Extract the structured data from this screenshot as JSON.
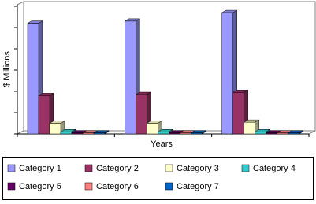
{
  "chart_data": {
    "type": "bar3d",
    "y_label": "$ Millions",
    "x_label": "Years",
    "categories": [
      null,
      null,
      null
    ],
    "ylim": [
      0,
      6
    ],
    "yticks": [
      0,
      1,
      2,
      3,
      4,
      5,
      6
    ],
    "legend": "bottom",
    "series": [
      {
        "name": "Category 1",
        "color": "#9999ff",
        "values": [
          5.2,
          5.3,
          5.7
        ]
      },
      {
        "name": "Category 2",
        "color": "#993366",
        "values": [
          1.8,
          1.85,
          1.95
        ]
      },
      {
        "name": "Category 3",
        "color": "#ffffcc",
        "values": [
          0.5,
          0.5,
          0.55
        ]
      },
      {
        "name": "Category 4",
        "color": "#33cccc",
        "values": [
          0.1,
          0.1,
          0.1
        ]
      },
      {
        "name": "Category 5",
        "color": "#660066",
        "values": [
          0.05,
          0.05,
          0.05
        ]
      },
      {
        "name": "Category 6",
        "color": "#ff8080",
        "values": [
          0.05,
          0.05,
          0.05
        ]
      },
      {
        "name": "Category 7",
        "color": "#0066cc",
        "values": [
          0.05,
          0.05,
          0.05
        ]
      }
    ]
  }
}
